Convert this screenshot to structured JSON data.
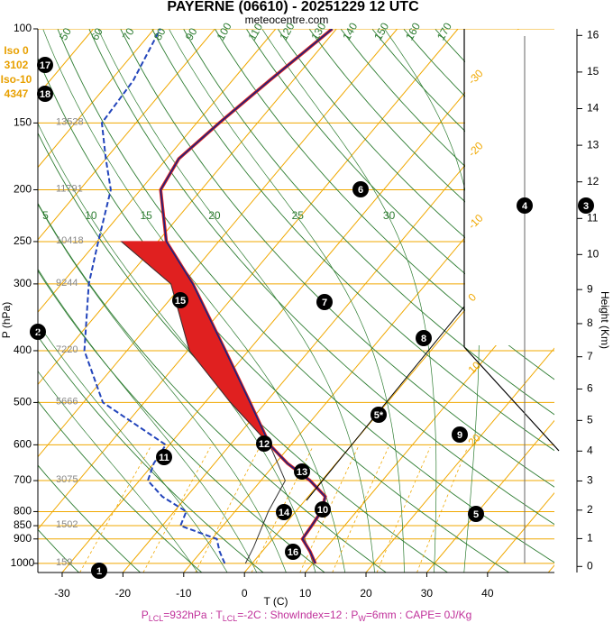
{
  "chart_data": {
    "type": "skewt",
    "title": "PAYERNE (06610) - 20251229 12 UTC",
    "subtitle": "meteocentre.com",
    "xlabel": "T (C)",
    "ylabel": "P (hPa)",
    "y2label": "Height (Km)",
    "xlim": [
      -34,
      51
    ],
    "ylim": [
      1040,
      100
    ],
    "log_y": true,
    "y2lim": [
      -0.2,
      16.2
    ],
    "xticks": [
      -30,
      -20,
      -10,
      0,
      10,
      20,
      30,
      40
    ],
    "yticks": [
      100,
      150,
      200,
      250,
      300,
      400,
      500,
      600,
      700,
      800,
      850,
      900,
      1000
    ],
    "y2ticks": [
      0,
      1,
      2,
      3,
      4,
      5,
      6,
      7,
      8,
      9,
      10,
      11,
      12,
      13,
      14,
      15,
      16
    ],
    "isobar_heights": [
      {
        "pressure": 150,
        "height": 13528
      },
      {
        "pressure": 200,
        "height": 11791
      },
      {
        "pressure": 250,
        "height": 10418
      },
      {
        "pressure": 300,
        "height": 9244
      },
      {
        "pressure": 400,
        "height": 7220
      },
      {
        "pressure": 500,
        "height": 5666
      },
      {
        "pressure": 700,
        "height": 3075
      },
      {
        "pressure": 850,
        "height": 1502
      },
      {
        "pressure": 1000,
        "height": 159
      }
    ],
    "isotherms": [
      -100,
      -90,
      -80,
      -70,
      -60,
      -50,
      -40,
      -30,
      -20,
      -10,
      0,
      10,
      20,
      30,
      40,
      50
    ],
    "dry_adiabats": [
      -30,
      -20,
      -10,
      0,
      10,
      20,
      30,
      40,
      50,
      60,
      70,
      80,
      90,
      100,
      110,
      120,
      130,
      140,
      150,
      160,
      170
    ],
    "moist_adiabats": [
      -10,
      -5,
      0,
      5,
      10,
      15,
      20,
      25,
      30,
      35
    ],
    "mixing_ratios": [
      0.4,
      1,
      2,
      4,
      7,
      10,
      16,
      24
    ],
    "pressure": [
      1000,
      950,
      900,
      850,
      800,
      750,
      700,
      650,
      600,
      500,
      400,
      300,
      250,
      200,
      175,
      150,
      125,
      100
    ],
    "temperature": [
      10.4,
      7.9,
      4.9,
      4.6,
      4.2,
      2.8,
      -1.9,
      -8,
      -13.5,
      -22.6,
      -33.8,
      -48.4,
      -58.6,
      -66.7,
      -68,
      -66.3,
      -63.9,
      -60.7
    ],
    "temperature_color": "#1a237e",
    "dewpoint": [
      -4.5,
      -7,
      -9.2,
      -17,
      -18,
      -24,
      -28.6,
      -30,
      -30.6,
      -46.8,
      -57,
      -65.5,
      -69.8,
      -74.9,
      -80,
      -85.6,
      -86.3,
      -89
    ],
    "dewpoint_color": "#2244bb",
    "parcel_pressure": [
      1000,
      932,
      850,
      800,
      700,
      600,
      500,
      400,
      300,
      250
    ],
    "parcel_temperature": [
      -1.1,
      -2,
      -3.5,
      -4.5,
      -6,
      -13.5,
      -25.8,
      -39.7,
      -52,
      -66
    ],
    "cin_color": "#e02020",
    "freezing_levels": [
      {
        "label": "Iso 0",
        "height": 3102
      },
      {
        "label": "Iso-10",
        "height": 4347
      }
    ],
    "markers": [
      "1",
      "2",
      "3",
      "4",
      "5",
      "5*",
      "6",
      "7",
      "8",
      "9",
      "10",
      "11",
      "12",
      "13",
      "14",
      "15",
      "16",
      "17",
      "18"
    ],
    "footer": [
      {
        "symbol": "P",
        "sub": "LCL",
        "text": "=932hPa"
      },
      {
        "symbol": "T",
        "sub": "LCL",
        "text": "=-2C"
      },
      {
        "text": "ShowIndex=12"
      },
      {
        "symbol": "P",
        "sub": "W",
        "text": "=6mm"
      },
      {
        "text": "CAPE= 0J/Kg"
      }
    ],
    "footer_separator": " : "
  }
}
